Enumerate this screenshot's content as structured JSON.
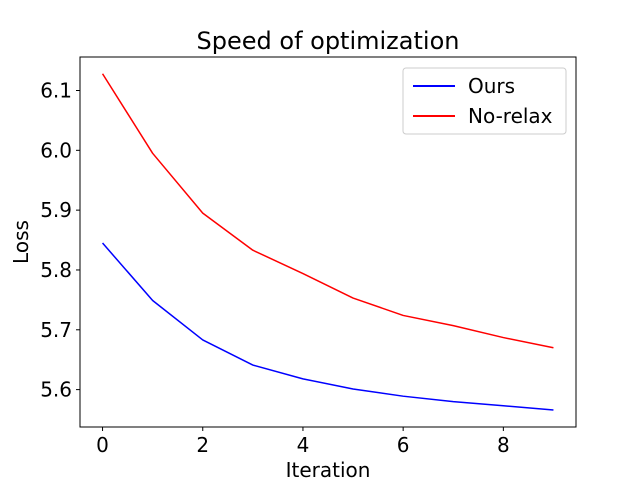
{
  "chart_data": {
    "type": "line",
    "title": "Speed of optimization",
    "xlabel": "Iteration",
    "ylabel": "Loss",
    "x": [
      0,
      1,
      2,
      3,
      4,
      5,
      6,
      7,
      8,
      9
    ],
    "series": [
      {
        "name": "Ours",
        "color": "#0000ff",
        "values": [
          5.845,
          5.749,
          5.683,
          5.641,
          5.618,
          5.601,
          5.589,
          5.58,
          5.573,
          5.566
        ]
      },
      {
        "name": "No-relax",
        "color": "#ff0000",
        "values": [
          6.128,
          5.995,
          5.895,
          5.833,
          5.794,
          5.753,
          5.724,
          5.707,
          5.687,
          5.67
        ]
      }
    ],
    "xlim": [
      -0.45,
      9.45
    ],
    "ylim": [
      5.5375,
      6.156
    ],
    "xticks": [
      0,
      2,
      4,
      6,
      8
    ],
    "xtick_labels": [
      "0",
      "2",
      "4",
      "6",
      "8"
    ],
    "yticks": [
      5.6,
      5.7,
      5.8,
      5.9,
      6.0,
      6.1
    ],
    "ytick_labels": [
      "5.6",
      "5.7",
      "5.8",
      "5.9",
      "6.0",
      "6.1"
    ],
    "grid": false,
    "legend_position": "top-right"
  }
}
